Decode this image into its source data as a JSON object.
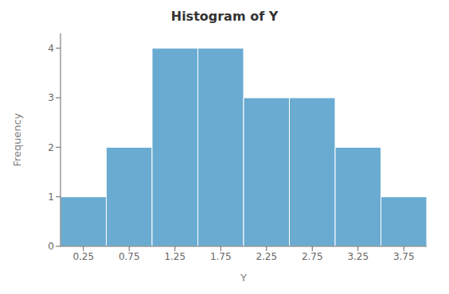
{
  "chart_data": {
    "type": "histogram",
    "title": "Histogram of Y",
    "xlabel": "Y",
    "ylabel": "Frequency",
    "bins": [
      0.0,
      0.5,
      1.0,
      1.5,
      2.0,
      2.5,
      3.0,
      3.5,
      4.0
    ],
    "values": [
      1,
      2,
      4,
      4,
      3,
      3,
      2,
      1
    ],
    "color": "#6aabd2",
    "xlim": [
      0.0,
      4.0
    ],
    "ylim": [
      0,
      4.3
    ],
    "xticks": [
      0.25,
      0.75,
      1.25,
      1.75,
      2.25,
      2.75,
      3.25,
      3.75
    ],
    "yticks": [
      0,
      1,
      2,
      3,
      4
    ],
    "grid": false
  }
}
